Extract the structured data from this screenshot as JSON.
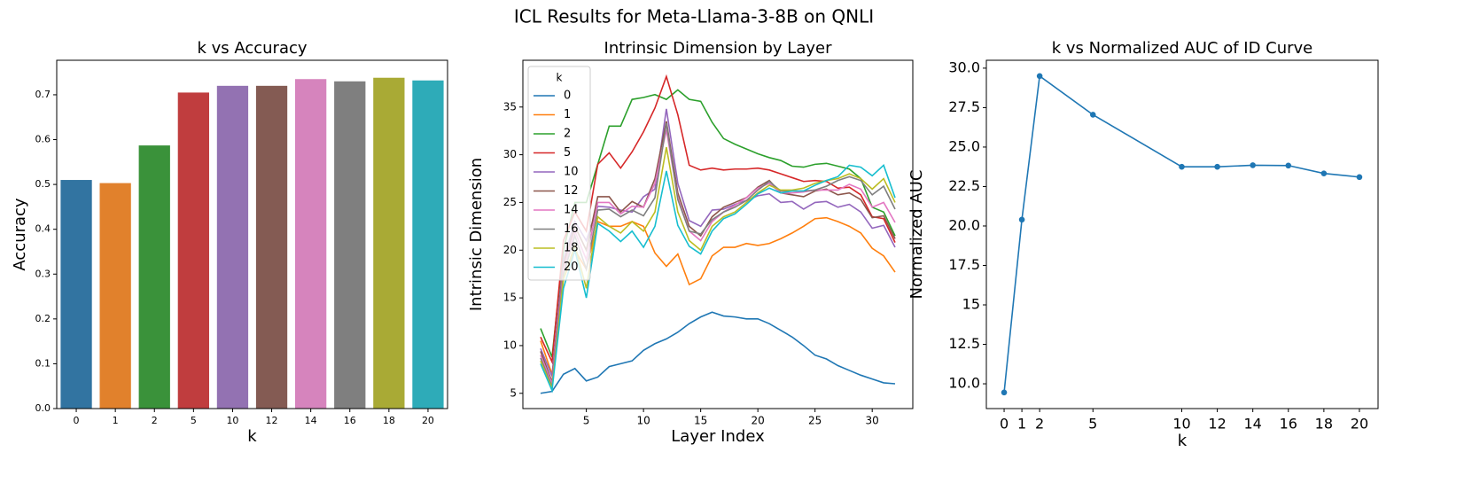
{
  "title": "ICL Results for Meta-Llama-3-8B on QNLI",
  "chart_data": [
    {
      "type": "bar",
      "title": "k vs Accuracy",
      "xlabel": "k",
      "ylabel": "Accuracy",
      "categories": [
        "0",
        "1",
        "2",
        "5",
        "10",
        "12",
        "14",
        "16",
        "18",
        "20"
      ],
      "values": [
        0.51,
        0.503,
        0.587,
        0.705,
        0.72,
        0.72,
        0.735,
        0.73,
        0.738,
        0.732
      ],
      "colors": [
        "#3274a1",
        "#e1812c",
        "#3a923a",
        "#c03d3e",
        "#9372b2",
        "#845b53",
        "#d684bd",
        "#7f7f7f",
        "#a9aa35",
        "#2eabb8"
      ],
      "ylim": [
        0,
        0.777
      ],
      "yticks": [
        {
          "value": 0,
          "label": "0.0"
        },
        0.1,
        0.2,
        0.3,
        0.4,
        0.5,
        0.6,
        0.7
      ],
      "grid": false
    },
    {
      "type": "line",
      "title": "Intrinsic Dimension by Layer",
      "xlabel": "Layer Index",
      "ylabel": "Intrinsic Dimension",
      "x": [
        1,
        2,
        3,
        4,
        5,
        6,
        7,
        8,
        9,
        10,
        11,
        12,
        13,
        14,
        15,
        16,
        17,
        18,
        19,
        20,
        21,
        22,
        23,
        24,
        25,
        26,
        27,
        28,
        29,
        30,
        31,
        32
      ],
      "xlim": [
        -0.55,
        33.55
      ],
      "xticks": [
        5,
        10,
        15,
        20,
        25,
        30
      ],
      "ylim": [
        3.4,
        39.9
      ],
      "yticks": [
        5,
        10,
        15,
        20,
        25,
        30,
        35
      ],
      "grid": false,
      "legend": "upper left",
      "legend_title": "k",
      "series": [
        {
          "name": "0",
          "color": "#1f77b4",
          "values": [
            5.0,
            5.2,
            7.0,
            7.6,
            6.3,
            6.7,
            7.8,
            8.1,
            8.4,
            9.5,
            10.2,
            10.7,
            11.4,
            12.3,
            13.0,
            13.5,
            13.1,
            13.0,
            12.8,
            12.8,
            12.3,
            11.6,
            10.9,
            10.0,
            9.0,
            8.6,
            7.9,
            7.4,
            6.9,
            6.5,
            6.1,
            6.0
          ]
        },
        {
          "name": "1",
          "color": "#ff7f0e",
          "values": [
            10.5,
            7.0,
            17,
            20,
            18,
            23,
            22.5,
            22.5,
            23,
            22.5,
            19.7,
            18.3,
            19.6,
            16.4,
            17.0,
            19.4,
            20.3,
            20.3,
            20.7,
            20.5,
            20.7,
            21.2,
            21.8,
            22.5,
            23.3,
            23.4,
            23.0,
            22.5,
            21.8,
            20.2,
            19.4,
            17.7
          ]
        },
        {
          "name": "2",
          "color": "#2ca02c",
          "values": [
            11.8,
            8.8,
            20,
            25,
            25,
            29,
            33,
            33,
            35.8,
            36,
            36.3,
            35.8,
            36.8,
            35.8,
            35.6,
            33.4,
            31.7,
            31.1,
            30.6,
            30.1,
            29.7,
            29.4,
            28.8,
            28.7,
            29.0,
            29.1,
            28.8,
            28.5,
            27.5,
            24.5,
            24.0,
            21.5
          ]
        },
        {
          "name": "5",
          "color": "#d62728",
          "values": [
            10.9,
            8.3,
            21,
            24,
            22,
            29,
            30.2,
            28.6,
            30.3,
            32.4,
            34.9,
            38.2,
            34.2,
            28.9,
            28.4,
            28.6,
            28.4,
            28.5,
            28.5,
            28.6,
            28.4,
            28.0,
            27.6,
            27.2,
            27.3,
            27.2,
            26.5,
            26.6,
            25.8,
            23.5,
            23.3,
            20.8
          ]
        },
        {
          "name": "10",
          "color": "#9467bd",
          "values": [
            9.7,
            6.8,
            19,
            23,
            21,
            24.6,
            24.5,
            24.2,
            24.0,
            25.6,
            26.4,
            34.8,
            27.0,
            23.1,
            22.5,
            24.2,
            24.3,
            24.8,
            25.2,
            25.7,
            25.9,
            25.0,
            25.1,
            24.3,
            25.0,
            25.1,
            24.5,
            24.8,
            24.0,
            22.3,
            22.6,
            20.3
          ]
        },
        {
          "name": "12",
          "color": "#8c564b",
          "values": [
            9.4,
            6.2,
            18.5,
            22.5,
            20,
            25.6,
            25.6,
            24.0,
            25.1,
            24.5,
            27.5,
            33.5,
            26.0,
            22.5,
            21.5,
            23.5,
            24.5,
            25.0,
            25.5,
            26.6,
            27.3,
            26.0,
            25.8,
            25.6,
            26.2,
            26.4,
            25.8,
            26.0,
            25.3,
            23.4,
            23.6,
            21.2
          ]
        },
        {
          "name": "14",
          "color": "#e377c2",
          "values": [
            9.0,
            6.0,
            18,
            22,
            19,
            25,
            25,
            23.8,
            24.6,
            24.5,
            27.0,
            32.6,
            25.5,
            22.0,
            21.0,
            23.0,
            24.0,
            24.7,
            25.5,
            26.5,
            27.0,
            26.0,
            26.0,
            26.1,
            26.3,
            26.3,
            26.3,
            26.9,
            26.4,
            24.5,
            25.0,
            22.9
          ]
        },
        {
          "name": "16",
          "color": "#7f7f7f",
          "values": [
            8.7,
            5.7,
            17.5,
            21.5,
            18,
            24.2,
            24.3,
            23.5,
            24.2,
            23.6,
            25.5,
            33.3,
            25.3,
            22.0,
            21.7,
            23.2,
            24.0,
            24.5,
            25.2,
            26.3,
            27.2,
            26.2,
            26.2,
            26.2,
            26.3,
            26.7,
            27.3,
            27.7,
            27.3,
            25.8,
            26.7,
            24.3
          ]
        },
        {
          "name": "18",
          "color": "#bcbd22",
          "values": [
            8.4,
            5.5,
            17,
            20.5,
            16,
            23.5,
            22.5,
            21.8,
            23.0,
            22.0,
            24.0,
            30.8,
            24.0,
            21.0,
            20.0,
            22.5,
            23.5,
            24.0,
            25.0,
            26.0,
            26.8,
            26.3,
            26.3,
            26.5,
            27.0,
            27.3,
            27.5,
            28.0,
            27.5,
            26.4,
            27.5,
            25.0
          ]
        },
        {
          "name": "20",
          "color": "#17becf",
          "values": [
            8.1,
            5.3,
            16,
            20,
            15,
            22.8,
            22.0,
            20.9,
            22.0,
            20.3,
            22.5,
            28.3,
            22.6,
            20.4,
            19.6,
            22.0,
            23.3,
            23.8,
            24.8,
            25.9,
            26.5,
            26.0,
            26.2,
            26.2,
            26.8,
            27.3,
            27.7,
            28.9,
            28.7,
            27.8,
            28.9,
            25.5
          ]
        }
      ]
    },
    {
      "type": "line",
      "title": "k vs Normalized AUC of ID Curve",
      "xlabel": "k",
      "ylabel": "Normalized AUC",
      "x": [
        0,
        1,
        2,
        5,
        10,
        12,
        14,
        16,
        18,
        20
      ],
      "values": [
        9.45,
        20.4,
        29.5,
        27.05,
        23.75,
        23.75,
        23.85,
        23.83,
        23.33,
        23.1
      ],
      "color": "#1f77b4",
      "markers": true,
      "xlim": [
        -1.0,
        21.05
      ],
      "xticks": [
        0,
        1,
        2,
        5,
        10,
        12,
        14,
        16,
        18,
        20
      ],
      "ylim": [
        8.43,
        30.5
      ],
      "yticks": [
        {
          "value": 10,
          "label": "10.0"
        },
        12.5,
        15,
        {
          "value": 15,
          "label": "15.0"
        },
        17.5,
        {
          "value": 20,
          "label": "20.0"
        },
        22.5,
        {
          "value": 25,
          "label": "25.0"
        },
        27.5,
        {
          "value": 30,
          "label": "30.0"
        }
      ],
      "grid": false
    }
  ]
}
